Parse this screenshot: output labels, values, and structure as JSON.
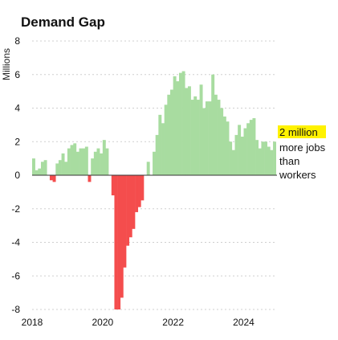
{
  "chart_data": {
    "type": "bar",
    "title": "Demand Gap",
    "ylabel": "Millions",
    "xlabel": "",
    "ylim": [
      -8,
      8
    ],
    "yticks": [
      8,
      6,
      4,
      2,
      0,
      -2,
      -4,
      -6,
      -8
    ],
    "xlim": [
      2018,
      2024.9
    ],
    "xticks": [
      "2018",
      "2020",
      "2022",
      "2024"
    ],
    "grid": true,
    "colors": {
      "positive": "#a8dca0",
      "negative": "#f44d4d",
      "highlight": "#fff200"
    },
    "annotation": {
      "highlight": "2 million",
      "lines": [
        "more jobs",
        "than",
        "workers"
      ]
    },
    "x": [
      2018.0,
      2018.083,
      2018.167,
      2018.25,
      2018.333,
      2018.417,
      2018.5,
      2018.583,
      2018.667,
      2018.75,
      2018.833,
      2018.917,
      2019.0,
      2019.083,
      2019.167,
      2019.25,
      2019.333,
      2019.417,
      2019.5,
      2019.583,
      2019.667,
      2019.75,
      2019.833,
      2019.917,
      2020.0,
      2020.083,
      2020.167,
      2020.25,
      2020.333,
      2020.417,
      2020.5,
      2020.583,
      2020.667,
      2020.75,
      2020.833,
      2020.917,
      2021.0,
      2021.083,
      2021.167,
      2021.25,
      2021.333,
      2021.417,
      2021.5,
      2021.583,
      2021.667,
      2021.75,
      2021.833,
      2021.917,
      2022.0,
      2022.083,
      2022.167,
      2022.25,
      2022.333,
      2022.417,
      2022.5,
      2022.583,
      2022.667,
      2022.75,
      2022.833,
      2022.917,
      2023.0,
      2023.083,
      2023.167,
      2023.25,
      2023.333,
      2023.417,
      2023.5,
      2023.583,
      2023.667,
      2023.75,
      2023.833,
      2023.917,
      2024.0,
      2024.083,
      2024.167,
      2024.25,
      2024.333,
      2024.417,
      2024.5,
      2024.583,
      2024.667,
      2024.75,
      2024.833
    ],
    "values": [
      1.0,
      0.3,
      0.4,
      0.8,
      0.9,
      0.0,
      -0.3,
      -0.4,
      0.7,
      0.9,
      1.3,
      0.8,
      1.6,
      1.8,
      1.9,
      1.4,
      1.6,
      1.6,
      1.7,
      -0.4,
      1.0,
      1.4,
      1.6,
      1.3,
      2.1,
      1.6,
      0.0,
      -1.2,
      -8.0,
      -8.0,
      -7.3,
      -5.5,
      -4.2,
      -3.7,
      -3.2,
      -2.2,
      -1.9,
      -1.5,
      0.0,
      0.8,
      0.0,
      1.4,
      2.4,
      3.6,
      3.1,
      4.2,
      4.8,
      5.1,
      5.9,
      5.6,
      6.1,
      6.2,
      5.2,
      5.3,
      4.5,
      4.7,
      4.5,
      5.4,
      4.0,
      4.4,
      4.4,
      6.0,
      4.8,
      4.5,
      4.0,
      3.5,
      3.2,
      2.0,
      1.5,
      2.4,
      3.0,
      2.3,
      2.8,
      3.1,
      3.3,
      3.4,
      2.1,
      1.6,
      2.0,
      2.0,
      1.7,
      1.5,
      2.0
    ]
  }
}
